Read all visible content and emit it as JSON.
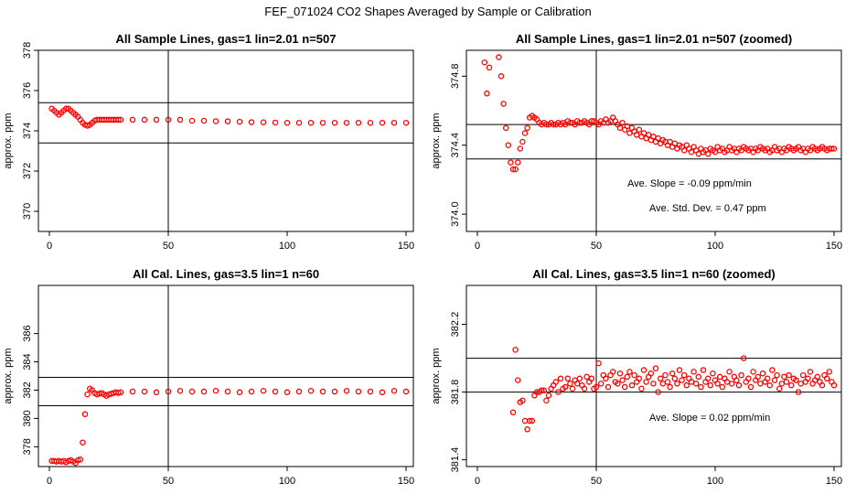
{
  "page_title": "FEF_071024  CO2 Shapes Averaged by Sample or Calibration",
  "colors": {
    "points": "#ff0000",
    "axes": "#000000"
  },
  "chart_data": [
    {
      "type": "scatter",
      "title": "All Sample Lines, gas=1 lin=2.01 n=507",
      "xlabel": "",
      "ylabel": "approx. ppm",
      "xlim": [
        0,
        150
      ],
      "ylim": [
        369,
        378
      ],
      "xticks": [
        0,
        50,
        100,
        150
      ],
      "yticks": [
        370,
        372,
        374,
        376,
        378
      ],
      "vline": 50,
      "hlines": [
        373.4,
        375.4
      ],
      "annotations": [],
      "series": [
        {
          "name": "sample shape",
          "x": [
            1,
            2,
            3,
            4,
            5,
            6,
            7,
            8,
            9,
            10,
            11,
            12,
            13,
            14,
            15,
            16,
            17,
            18,
            19,
            20,
            21,
            22,
            23,
            24,
            25,
            26,
            27,
            28,
            29,
            30,
            35,
            40,
            45,
            50,
            55,
            60,
            65,
            70,
            75,
            80,
            85,
            90,
            95,
            100,
            105,
            110,
            115,
            120,
            125,
            130,
            135,
            140,
            145,
            150
          ],
          "y": [
            375.1,
            375.0,
            374.9,
            374.8,
            374.9,
            375.0,
            375.1,
            375.1,
            375.0,
            374.9,
            374.8,
            374.7,
            374.55,
            374.4,
            374.3,
            374.25,
            374.3,
            374.4,
            374.5,
            374.55,
            374.55,
            374.55,
            374.55,
            374.55,
            374.55,
            374.55,
            374.55,
            374.55,
            374.55,
            374.55,
            374.55,
            374.55,
            374.55,
            374.55,
            374.55,
            374.5,
            374.5,
            374.48,
            374.47,
            374.45,
            374.43,
            374.42,
            374.41,
            374.4,
            374.4,
            374.4,
            374.4,
            374.4,
            374.4,
            374.4,
            374.4,
            374.4,
            374.4,
            374.4
          ]
        }
      ]
    },
    {
      "type": "scatter",
      "title": "All Sample Lines, gas=1 lin=2.01 n=507 (zoomed)",
      "xlabel": "",
      "ylabel": "approx. ppm",
      "xlim": [
        0,
        150
      ],
      "ylim": [
        373.9,
        374.95
      ],
      "xticks": [
        0,
        50,
        100,
        150
      ],
      "yticks": [
        374.0,
        374.4,
        374.8
      ],
      "ytick_labels": [
        "374.0",
        "374.4",
        "374.8"
      ],
      "vline": 50,
      "hlines": [
        374.32,
        374.52
      ],
      "annotations": [
        "Ave. Slope =  -0.09  ppm/min",
        "Ave. Std. Dev. =  0.47  ppm"
      ],
      "series": [
        {
          "name": "sample shape zoomed",
          "x": [
            3,
            4,
            5,
            9,
            10,
            11,
            12,
            13,
            14,
            15,
            16,
            17,
            18,
            19,
            20,
            21,
            22,
            23,
            24,
            25,
            26,
            27,
            28,
            29,
            30,
            31,
            32,
            33,
            34,
            35,
            36,
            37,
            38,
            39,
            40,
            41,
            42,
            43,
            44,
            45,
            46,
            47,
            48,
            49,
            50,
            51,
            52,
            53,
            54,
            55,
            56,
            57,
            58,
            59,
            60,
            61,
            62,
            63,
            64,
            65,
            66,
            67,
            68,
            69,
            70,
            71,
            72,
            73,
            74,
            75,
            76,
            77,
            78,
            79,
            80,
            81,
            82,
            83,
            84,
            85,
            86,
            87,
            88,
            89,
            90,
            91,
            92,
            93,
            94,
            95,
            96,
            97,
            98,
            99,
            100,
            101,
            102,
            103,
            104,
            105,
            106,
            107,
            108,
            109,
            110,
            111,
            112,
            113,
            114,
            115,
            116,
            117,
            118,
            119,
            120,
            121,
            122,
            123,
            124,
            125,
            126,
            127,
            128,
            129,
            130,
            131,
            132,
            133,
            134,
            135,
            136,
            137,
            138,
            139,
            140,
            141,
            142,
            143,
            144,
            145,
            146,
            147,
            148,
            149,
            150
          ],
          "y": [
            374.88,
            374.7,
            374.85,
            374.91,
            374.8,
            374.64,
            374.5,
            374.4,
            374.3,
            374.26,
            374.26,
            374.3,
            374.38,
            374.42,
            374.47,
            374.5,
            374.56,
            374.57,
            374.56,
            374.55,
            374.53,
            374.52,
            374.53,
            374.52,
            374.52,
            374.53,
            374.52,
            374.52,
            374.53,
            374.52,
            374.53,
            374.52,
            374.54,
            374.53,
            374.53,
            374.52,
            374.54,
            374.53,
            374.53,
            374.54,
            374.53,
            374.52,
            374.54,
            374.54,
            374.53,
            374.52,
            374.54,
            374.53,
            374.55,
            374.53,
            374.54,
            374.56,
            374.54,
            374.52,
            374.5,
            374.53,
            374.49,
            374.51,
            374.47,
            374.5,
            374.48,
            374.46,
            374.49,
            374.45,
            374.47,
            374.44,
            374.46,
            374.43,
            374.45,
            374.42,
            374.44,
            374.41,
            374.43,
            374.42,
            374.4,
            374.42,
            374.39,
            374.41,
            374.38,
            374.4,
            374.39,
            374.37,
            374.4,
            374.38,
            374.36,
            374.39,
            374.37,
            374.35,
            374.38,
            374.36,
            374.37,
            374.35,
            374.38,
            374.37,
            374.36,
            374.39,
            374.37,
            374.38,
            374.36,
            374.37,
            374.39,
            374.37,
            374.38,
            374.36,
            374.38,
            374.37,
            374.39,
            374.38,
            374.37,
            374.38,
            374.36,
            374.38,
            374.37,
            374.39,
            374.38,
            374.37,
            374.38,
            374.36,
            374.37,
            374.39,
            374.37,
            374.38,
            374.36,
            374.38,
            374.37,
            374.39,
            374.38,
            374.37,
            374.38,
            374.39,
            374.37,
            374.38,
            374.36,
            374.38,
            374.37,
            374.39,
            374.38,
            374.37,
            374.38,
            374.39,
            374.38,
            374.37,
            374.38,
            374.38,
            374.38
          ]
        }
      ]
    },
    {
      "type": "scatter",
      "title": "All Cal. Lines, gas=3.5 lin=1 n=60",
      "xlabel": "",
      "ylabel": "approx. ppm",
      "xlim": [
        0,
        150
      ],
      "ylim": [
        376.6,
        389.4
      ],
      "xticks": [
        0,
        50,
        100,
        150
      ],
      "yticks": [
        378,
        380,
        382,
        384,
        386
      ],
      "vline": 50,
      "hlines": [
        380.9,
        382.9
      ],
      "annotations": [],
      "series": [
        {
          "name": "cal shape",
          "x": [
            1,
            2,
            3,
            4,
            5,
            6,
            7,
            8,
            9,
            10,
            11,
            12,
            13,
            14,
            15,
            16,
            17,
            18,
            19,
            20,
            21,
            22,
            23,
            24,
            25,
            26,
            27,
            28,
            29,
            30,
            35,
            40,
            45,
            50,
            55,
            60,
            65,
            70,
            75,
            80,
            85,
            90,
            95,
            100,
            105,
            110,
            115,
            120,
            125,
            130,
            135,
            140,
            145,
            150
          ],
          "y": [
            377.0,
            377.0,
            376.95,
            377.0,
            376.95,
            377.0,
            376.9,
            377.0,
            377.05,
            376.95,
            376.85,
            377.05,
            377.1,
            378.3,
            380.3,
            381.7,
            382.1,
            382.0,
            381.8,
            381.7,
            381.75,
            381.8,
            381.7,
            381.6,
            381.7,
            381.75,
            381.8,
            381.85,
            381.8,
            381.85,
            381.9,
            381.9,
            381.85,
            381.9,
            381.95,
            381.9,
            381.9,
            381.95,
            381.9,
            381.85,
            381.9,
            381.95,
            381.9,
            381.85,
            381.9,
            381.95,
            381.9,
            381.9,
            381.95,
            381.9,
            381.9,
            381.85,
            381.95,
            381.9
          ]
        }
      ]
    },
    {
      "type": "scatter",
      "title": "All Cal. Lines, gas=3.5 lin=1 n=60 (zoomed)",
      "xlabel": "",
      "ylabel": "approx. ppm",
      "xlim": [
        0,
        150
      ],
      "ylim": [
        381.36,
        382.43
      ],
      "xticks": [
        0,
        50,
        100,
        150
      ],
      "yticks": [
        381.4,
        381.8,
        382.2
      ],
      "vline": 50,
      "hlines": [
        381.8,
        382.0
      ],
      "annotations": [
        "Ave. Slope =  0.02  ppm/min"
      ],
      "series": [
        {
          "name": "cal shape zoomed",
          "x": [
            15,
            16,
            17,
            18,
            19,
            20,
            21,
            22,
            23,
            24,
            25,
            26,
            27,
            28,
            29,
            30,
            31,
            32,
            33,
            34,
            35,
            36,
            37,
            38,
            39,
            40,
            41,
            42,
            43,
            44,
            45,
            46,
            47,
            48,
            49,
            50,
            51,
            52,
            53,
            54,
            55,
            56,
            57,
            58,
            59,
            60,
            61,
            62,
            63,
            64,
            65,
            66,
            67,
            68,
            69,
            70,
            71,
            72,
            73,
            74,
            75,
            76,
            77,
            78,
            79,
            80,
            81,
            82,
            83,
            84,
            85,
            86,
            87,
            88,
            89,
            90,
            91,
            92,
            93,
            94,
            95,
            96,
            97,
            98,
            99,
            100,
            101,
            102,
            103,
            104,
            105,
            106,
            107,
            108,
            109,
            110,
            111,
            112,
            113,
            114,
            115,
            116,
            117,
            118,
            119,
            120,
            121,
            122,
            123,
            124,
            125,
            126,
            127,
            128,
            129,
            130,
            131,
            132,
            133,
            134,
            135,
            136,
            137,
            138,
            139,
            140,
            141,
            142,
            143,
            144,
            145,
            146,
            147,
            148,
            149,
            150
          ],
          "y": [
            381.68,
            382.05,
            381.87,
            381.74,
            381.75,
            381.63,
            381.58,
            381.63,
            381.63,
            381.78,
            381.8,
            381.8,
            381.81,
            381.81,
            381.75,
            381.78,
            381.82,
            381.84,
            381.86,
            381.8,
            381.88,
            381.82,
            381.83,
            381.88,
            381.85,
            381.82,
            381.87,
            381.85,
            381.88,
            381.84,
            381.82,
            381.89,
            381.86,
            381.88,
            381.82,
            381.83,
            381.97,
            381.85,
            381.9,
            381.88,
            381.83,
            381.9,
            381.92,
            381.86,
            381.85,
            381.91,
            381.87,
            381.83,
            381.89,
            381.92,
            381.84,
            381.9,
            381.86,
            381.88,
            381.82,
            381.93,
            381.86,
            381.89,
            381.91,
            381.85,
            381.94,
            381.8,
            381.88,
            381.85,
            381.9,
            381.86,
            381.83,
            381.91,
            381.88,
            381.85,
            381.93,
            381.87,
            381.9,
            381.84,
            381.88,
            381.86,
            381.92,
            381.85,
            381.89,
            381.83,
            381.93,
            381.86,
            381.88,
            381.84,
            381.91,
            381.87,
            381.85,
            381.89,
            381.83,
            381.88,
            381.86,
            381.92,
            381.85,
            381.89,
            381.87,
            381.84,
            381.9,
            382.0,
            381.86,
            381.88,
            381.83,
            381.92,
            381.87,
            381.89,
            381.85,
            381.91,
            381.86,
            381.88,
            381.84,
            381.93,
            381.87,
            381.9,
            381.82,
            381.85,
            381.89,
            381.86,
            381.9,
            381.84,
            381.88,
            381.87,
            381.8,
            381.85,
            381.9,
            381.86,
            381.88,
            381.92,
            381.85,
            381.87,
            381.89,
            381.86,
            381.84,
            381.9,
            381.88,
            381.92,
            381.86,
            381.84
          ]
        }
      ]
    }
  ]
}
